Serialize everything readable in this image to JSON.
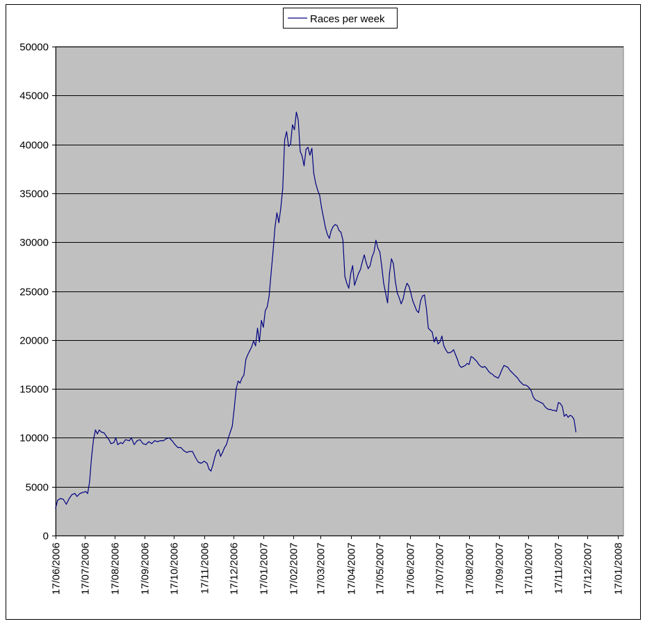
{
  "chart_data": {
    "type": "line",
    "title": "",
    "xlabel": "",
    "ylabel": "",
    "ylim": [
      0,
      50000
    ],
    "yticks": [
      0,
      5000,
      10000,
      15000,
      20000,
      25000,
      30000,
      35000,
      40000,
      45000,
      50000
    ],
    "xlim": [
      "2006-06-17",
      "2008-01-23"
    ],
    "xtick_labels": [
      "17/06/2006",
      "17/07/2006",
      "17/08/2006",
      "17/09/2006",
      "17/10/2006",
      "17/11/2006",
      "17/12/2006",
      "17/01/2007",
      "17/02/2007",
      "17/03/2007",
      "17/04/2007",
      "17/05/2007",
      "17/06/2007",
      "17/07/2007",
      "17/08/2007",
      "17/09/2007",
      "17/10/2007",
      "17/11/2007",
      "17/12/2007",
      "17/01/2008"
    ],
    "xtick_dates": [
      "2006-06-17",
      "2006-07-17",
      "2006-08-17",
      "2006-09-17",
      "2006-10-17",
      "2006-11-17",
      "2006-12-17",
      "2007-01-17",
      "2007-02-17",
      "2007-03-17",
      "2007-04-17",
      "2007-05-17",
      "2007-06-17",
      "2007-07-17",
      "2007-08-17",
      "2007-09-17",
      "2007-10-17",
      "2007-11-17",
      "2007-12-17",
      "2008-01-17"
    ],
    "grid": "horizontal",
    "legend": "top-center",
    "background_color": "#c0c0c0",
    "line_color": "#000080",
    "series": [
      {
        "name": "Races per week",
        "points": [
          [
            "2006-06-17",
            2800
          ],
          [
            "2006-06-19",
            3600
          ],
          [
            "2006-06-22",
            3800
          ],
          [
            "2006-06-25",
            3700
          ],
          [
            "2006-06-28",
            3200
          ],
          [
            "2006-07-01",
            3800
          ],
          [
            "2006-07-04",
            4200
          ],
          [
            "2006-07-07",
            4300
          ],
          [
            "2006-07-09",
            4000
          ],
          [
            "2006-07-12",
            4300
          ],
          [
            "2006-07-15",
            4400
          ],
          [
            "2006-07-18",
            4500
          ],
          [
            "2006-07-20",
            4300
          ],
          [
            "2006-07-22",
            5500
          ],
          [
            "2006-07-24",
            8000
          ],
          [
            "2006-07-26",
            9800
          ],
          [
            "2006-07-28",
            10800
          ],
          [
            "2006-07-30",
            10400
          ],
          [
            "2006-08-01",
            10800
          ],
          [
            "2006-08-03",
            10600
          ],
          [
            "2006-08-06",
            10500
          ],
          [
            "2006-08-08",
            10200
          ],
          [
            "2006-08-11",
            9800
          ],
          [
            "2006-08-13",
            9400
          ],
          [
            "2006-08-16",
            9500
          ],
          [
            "2006-08-18",
            10000
          ],
          [
            "2006-08-20",
            9300
          ],
          [
            "2006-08-23",
            9500
          ],
          [
            "2006-08-25",
            9400
          ],
          [
            "2006-08-28",
            9800
          ],
          [
            "2006-09-01",
            9700
          ],
          [
            "2006-09-03",
            10000
          ],
          [
            "2006-09-06",
            9300
          ],
          [
            "2006-09-09",
            9700
          ],
          [
            "2006-09-12",
            9800
          ],
          [
            "2006-09-15",
            9400
          ],
          [
            "2006-09-18",
            9300
          ],
          [
            "2006-09-21",
            9600
          ],
          [
            "2006-09-24",
            9400
          ],
          [
            "2006-09-27",
            9700
          ],
          [
            "2006-09-30",
            9600
          ],
          [
            "2006-10-03",
            9700
          ],
          [
            "2006-10-06",
            9700
          ],
          [
            "2006-10-09",
            9900
          ],
          [
            "2006-10-12",
            10000
          ],
          [
            "2006-10-15",
            9700
          ],
          [
            "2006-10-18",
            9300
          ],
          [
            "2006-10-21",
            9000
          ],
          [
            "2006-10-24",
            9000
          ],
          [
            "2006-10-27",
            8700
          ],
          [
            "2006-10-30",
            8500
          ],
          [
            "2006-11-02",
            8600
          ],
          [
            "2006-11-05",
            8600
          ],
          [
            "2006-11-08",
            8000
          ],
          [
            "2006-11-11",
            7500
          ],
          [
            "2006-11-14",
            7400
          ],
          [
            "2006-11-17",
            7600
          ],
          [
            "2006-11-20",
            7400
          ],
          [
            "2006-11-22",
            6800
          ],
          [
            "2006-11-24",
            6600
          ],
          [
            "2006-11-26",
            7200
          ],
          [
            "2006-11-28",
            8000
          ],
          [
            "2006-11-30",
            8600
          ],
          [
            "2006-12-02",
            8800
          ],
          [
            "2006-12-04",
            8100
          ],
          [
            "2006-12-06",
            8500
          ],
          [
            "2006-12-08",
            9000
          ],
          [
            "2006-12-10",
            9300
          ],
          [
            "2006-12-12",
            10000
          ],
          [
            "2006-12-14",
            10600
          ],
          [
            "2006-12-16",
            11200
          ],
          [
            "2006-12-18",
            13000
          ],
          [
            "2006-12-20",
            15000
          ],
          [
            "2006-12-22",
            15800
          ],
          [
            "2006-12-24",
            15600
          ],
          [
            "2006-12-26",
            16100
          ],
          [
            "2006-12-28",
            16400
          ],
          [
            "2006-12-30",
            18000
          ],
          [
            "2007-01-01",
            18500
          ],
          [
            "2007-01-03",
            18900
          ],
          [
            "2007-01-05",
            19300
          ],
          [
            "2007-01-07",
            19900
          ],
          [
            "2007-01-09",
            19400
          ],
          [
            "2007-01-11",
            21200
          ],
          [
            "2007-01-13",
            19800
          ],
          [
            "2007-01-15",
            22000
          ],
          [
            "2007-01-17",
            21300
          ],
          [
            "2007-01-19",
            23000
          ],
          [
            "2007-01-21",
            23400
          ],
          [
            "2007-01-23",
            24500
          ],
          [
            "2007-01-25",
            26800
          ],
          [
            "2007-01-27",
            29000
          ],
          [
            "2007-01-29",
            31500
          ],
          [
            "2007-01-31",
            33000
          ],
          [
            "2007-02-02",
            32000
          ],
          [
            "2007-02-04",
            33500
          ],
          [
            "2007-02-06",
            35500
          ],
          [
            "2007-02-08",
            40500
          ],
          [
            "2007-02-10",
            41300
          ],
          [
            "2007-02-12",
            39800
          ],
          [
            "2007-02-14",
            40000
          ],
          [
            "2007-02-16",
            42000
          ],
          [
            "2007-02-18",
            41500
          ],
          [
            "2007-02-20",
            43300
          ],
          [
            "2007-02-22",
            42500
          ],
          [
            "2007-02-24",
            39300
          ],
          [
            "2007-02-26",
            38800
          ],
          [
            "2007-02-28",
            37800
          ],
          [
            "2007-03-02",
            39500
          ],
          [
            "2007-03-04",
            39700
          ],
          [
            "2007-03-06",
            38900
          ],
          [
            "2007-03-08",
            39600
          ],
          [
            "2007-03-10",
            37000
          ],
          [
            "2007-03-12",
            36000
          ],
          [
            "2007-03-14",
            35300
          ],
          [
            "2007-03-16",
            34800
          ],
          [
            "2007-03-18",
            33500
          ],
          [
            "2007-03-20",
            32500
          ],
          [
            "2007-03-22",
            31500
          ],
          [
            "2007-03-24",
            30800
          ],
          [
            "2007-03-26",
            30400
          ],
          [
            "2007-03-28",
            31200
          ],
          [
            "2007-03-30",
            31600
          ],
          [
            "2007-04-01",
            31800
          ],
          [
            "2007-04-03",
            31700
          ],
          [
            "2007-04-05",
            31200
          ],
          [
            "2007-04-07",
            31000
          ],
          [
            "2007-04-09",
            30200
          ],
          [
            "2007-04-11",
            26500
          ],
          [
            "2007-04-13",
            25800
          ],
          [
            "2007-04-15",
            25300
          ],
          [
            "2007-04-17",
            26800
          ],
          [
            "2007-04-19",
            27600
          ],
          [
            "2007-04-21",
            25600
          ],
          [
            "2007-04-23",
            26200
          ],
          [
            "2007-04-25",
            26800
          ],
          [
            "2007-04-27",
            27200
          ],
          [
            "2007-04-29",
            28000
          ],
          [
            "2007-05-01",
            28700
          ],
          [
            "2007-05-03",
            27900
          ],
          [
            "2007-05-05",
            27300
          ],
          [
            "2007-05-07",
            27600
          ],
          [
            "2007-05-09",
            28500
          ],
          [
            "2007-05-11",
            29000
          ],
          [
            "2007-05-13",
            30200
          ],
          [
            "2007-05-15",
            29400
          ],
          [
            "2007-05-17",
            29000
          ],
          [
            "2007-05-19",
            27500
          ],
          [
            "2007-05-21",
            25800
          ],
          [
            "2007-05-23",
            24800
          ],
          [
            "2007-05-25",
            23800
          ],
          [
            "2007-05-27",
            26800
          ],
          [
            "2007-05-29",
            28300
          ],
          [
            "2007-05-31",
            27800
          ],
          [
            "2007-06-02",
            26000
          ],
          [
            "2007-06-04",
            24800
          ],
          [
            "2007-06-06",
            24300
          ],
          [
            "2007-06-08",
            23700
          ],
          [
            "2007-06-10",
            24200
          ],
          [
            "2007-06-12",
            25200
          ],
          [
            "2007-06-14",
            25800
          ],
          [
            "2007-06-16",
            25500
          ],
          [
            "2007-06-18",
            24800
          ],
          [
            "2007-06-20",
            24000
          ],
          [
            "2007-06-22",
            23500
          ],
          [
            "2007-06-24",
            23000
          ],
          [
            "2007-06-26",
            22800
          ],
          [
            "2007-06-28",
            24000
          ],
          [
            "2007-06-30",
            24500
          ],
          [
            "2007-07-02",
            24600
          ],
          [
            "2007-07-04",
            23200
          ],
          [
            "2007-07-06",
            21200
          ],
          [
            "2007-07-08",
            21000
          ],
          [
            "2007-07-10",
            20800
          ],
          [
            "2007-07-12",
            19800
          ],
          [
            "2007-07-14",
            20300
          ],
          [
            "2007-07-16",
            19600
          ],
          [
            "2007-07-18",
            19800
          ],
          [
            "2007-07-20",
            20400
          ],
          [
            "2007-07-22",
            19400
          ],
          [
            "2007-07-24",
            19000
          ],
          [
            "2007-07-26",
            18700
          ],
          [
            "2007-07-28",
            18700
          ],
          [
            "2007-07-30",
            18800
          ],
          [
            "2007-08-01",
            19000
          ],
          [
            "2007-08-03",
            18500
          ],
          [
            "2007-08-05",
            18000
          ],
          [
            "2007-08-07",
            17400
          ],
          [
            "2007-08-09",
            17200
          ],
          [
            "2007-08-11",
            17300
          ],
          [
            "2007-08-13",
            17400
          ],
          [
            "2007-08-15",
            17600
          ],
          [
            "2007-08-17",
            17500
          ],
          [
            "2007-08-19",
            18300
          ],
          [
            "2007-08-21",
            18200
          ],
          [
            "2007-08-23",
            18000
          ],
          [
            "2007-08-25",
            17800
          ],
          [
            "2007-08-27",
            17500
          ],
          [
            "2007-08-29",
            17300
          ],
          [
            "2007-08-31",
            17200
          ],
          [
            "2007-09-02",
            17300
          ],
          [
            "2007-09-04",
            17100
          ],
          [
            "2007-09-06",
            16800
          ],
          [
            "2007-09-08",
            16600
          ],
          [
            "2007-09-10",
            16500
          ],
          [
            "2007-09-12",
            16300
          ],
          [
            "2007-09-14",
            16200
          ],
          [
            "2007-09-16",
            16100
          ],
          [
            "2007-09-18",
            16500
          ],
          [
            "2007-09-20",
            17000
          ],
          [
            "2007-09-22",
            17400
          ],
          [
            "2007-09-24",
            17300
          ],
          [
            "2007-09-26",
            17200
          ],
          [
            "2007-09-28",
            16900
          ],
          [
            "2007-09-30",
            16700
          ],
          [
            "2007-10-02",
            16500
          ],
          [
            "2007-10-04",
            16300
          ],
          [
            "2007-10-06",
            16100
          ],
          [
            "2007-10-08",
            15800
          ],
          [
            "2007-10-10",
            15600
          ],
          [
            "2007-10-12",
            15400
          ],
          [
            "2007-10-14",
            15400
          ],
          [
            "2007-10-16",
            15300
          ],
          [
            "2007-10-18",
            15100
          ],
          [
            "2007-10-20",
            14800
          ],
          [
            "2007-10-22",
            14200
          ],
          [
            "2007-10-24",
            13900
          ],
          [
            "2007-10-26",
            13800
          ],
          [
            "2007-10-28",
            13700
          ],
          [
            "2007-10-30",
            13600
          ],
          [
            "2007-11-01",
            13500
          ],
          [
            "2007-11-03",
            13200
          ],
          [
            "2007-11-05",
            13000
          ],
          [
            "2007-11-07",
            12900
          ],
          [
            "2007-11-09",
            12900
          ],
          [
            "2007-11-11",
            12800
          ],
          [
            "2007-11-13",
            12800
          ],
          [
            "2007-11-15",
            12700
          ],
          [
            "2007-11-17",
            13600
          ],
          [
            "2007-11-19",
            13500
          ],
          [
            "2007-11-21",
            13200
          ],
          [
            "2007-11-23",
            12200
          ],
          [
            "2007-11-25",
            12400
          ],
          [
            "2007-11-27",
            12100
          ],
          [
            "2007-11-29",
            12300
          ],
          [
            "2007-12-01",
            12200
          ],
          [
            "2007-12-03",
            11900
          ],
          [
            "2007-12-05",
            10600
          ]
        ]
      }
    ]
  }
}
